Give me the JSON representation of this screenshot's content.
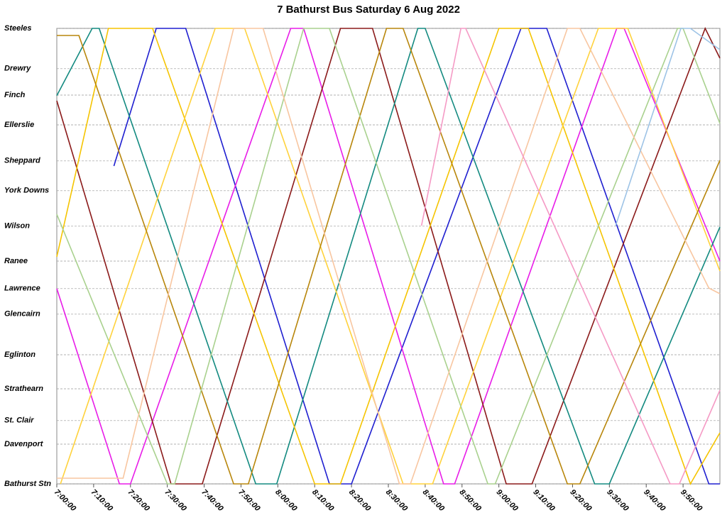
{
  "chart_data": {
    "type": "line",
    "title": "7 Bathurst Bus Saturday 6 Aug 2022",
    "xlim": [
      420,
      600
    ],
    "ylim": [
      0,
      16.05
    ],
    "grid": true,
    "xticks": [
      {
        "value": 420,
        "label": "7:00:00"
      },
      {
        "value": 430,
        "label": "7:10:00"
      },
      {
        "value": 440,
        "label": "7:20:00"
      },
      {
        "value": 450,
        "label": "7:30:00"
      },
      {
        "value": 460,
        "label": "7:40:00"
      },
      {
        "value": 470,
        "label": "7:50:00"
      },
      {
        "value": 480,
        "label": "8:00:00"
      },
      {
        "value": 490,
        "label": "8:10:00"
      },
      {
        "value": 500,
        "label": "8:20:00"
      },
      {
        "value": 510,
        "label": "8:30:00"
      },
      {
        "value": 520,
        "label": "8:40:00"
      },
      {
        "value": 530,
        "label": "8:50:00"
      },
      {
        "value": 540,
        "label": "9:00:00"
      },
      {
        "value": 550,
        "label": "9:10:00"
      },
      {
        "value": 560,
        "label": "9:20:00"
      },
      {
        "value": 570,
        "label": "9:30:00"
      },
      {
        "value": 580,
        "label": "9:40:00"
      },
      {
        "value": 590,
        "label": "9:50:00"
      }
    ],
    "yticks": [
      {
        "value": 16.05,
        "label": "Steeles"
      },
      {
        "value": 14.63,
        "label": "Drewry"
      },
      {
        "value": 13.7,
        "label": "Finch"
      },
      {
        "value": 12.65,
        "label": "Ellerslie"
      },
      {
        "value": 11.38,
        "label": "Sheppard"
      },
      {
        "value": 10.33,
        "label": "York Downs"
      },
      {
        "value": 9.08,
        "label": "Wilson"
      },
      {
        "value": 7.85,
        "label": "Ranee"
      },
      {
        "value": 6.88,
        "label": "Lawrence"
      },
      {
        "value": 5.98,
        "label": "Glencairn"
      },
      {
        "value": 4.55,
        "label": "Eglinton"
      },
      {
        "value": 3.35,
        "label": "Strathearn"
      },
      {
        "value": 2.23,
        "label": "St. Clair"
      },
      {
        "value": 1.4,
        "label": "Davenport"
      },
      {
        "value": 0,
        "label": "Bathurst Stn"
      }
    ],
    "series": [
      {
        "color": "#1f1fd0",
        "x": [
          435.5,
          447,
          455,
          494,
          500,
          546,
          553,
          597,
          600
        ],
        "values": [
          11.2,
          16.05,
          16.05,
          0,
          0,
          16.05,
          16.05,
          0,
          0
        ]
      },
      {
        "color": "#e81ce8",
        "x": [
          420,
          437,
          440,
          483.5,
          487,
          525,
          528,
          572,
          574,
          600
        ],
        "values": [
          6.88,
          0,
          0,
          16.05,
          16.05,
          0,
          0,
          16.05,
          16.05,
          7.85
        ]
      },
      {
        "color": "#8b1a1a",
        "x": [
          420,
          451,
          459.5,
          497,
          505.7,
          542,
          549,
          596,
          600
        ],
        "values": [
          13.5,
          0,
          0,
          16.05,
          16.05,
          0,
          0,
          16.05,
          15
        ]
      },
      {
        "color": "#138a80",
        "x": [
          420,
          429.6,
          431.5,
          474,
          479.7,
          518,
          520,
          566,
          570,
          600
        ],
        "values": [
          13.68,
          16.05,
          16.05,
          0,
          0,
          16.05,
          16.05,
          0,
          0,
          9.05
        ]
      },
      {
        "color": "#f5c400",
        "x": [
          420,
          434,
          446,
          490,
          497,
          540,
          548,
          592,
          600
        ],
        "values": [
          8,
          16.05,
          16.05,
          0,
          0,
          16.05,
          16.05,
          0,
          1.8
        ]
      },
      {
        "color": "#ffd23c",
        "x": [
          421,
          463,
          471,
          514,
          522,
          567,
          575,
          600
        ],
        "values": [
          0,
          16.05,
          16.05,
          0,
          0,
          16.05,
          16.05,
          7.5
        ]
      },
      {
        "color": "#b8860b",
        "x": [
          420,
          426,
          468,
          472,
          509.5,
          514,
          558.6,
          562,
          600
        ],
        "values": [
          15.8,
          15.8,
          0,
          0,
          16.05,
          16.05,
          0,
          0,
          11.4
        ]
      },
      {
        "color": "#a9d18e",
        "x": [
          420,
          450,
          452,
          487,
          494,
          537,
          539,
          588.5,
          590,
          600
        ],
        "values": [
          9.5,
          0,
          0,
          16.05,
          16.05,
          0,
          0,
          16.05,
          16.05,
          12.7
        ]
      },
      {
        "color": "#f8c6a0",
        "x": [
          420,
          438,
          468,
          476,
          513,
          516,
          558.6,
          562,
          597,
          600
        ],
        "values": [
          0.2,
          0.2,
          16.05,
          16.05,
          0,
          0,
          16.05,
          16.05,
          6.9,
          6.7
        ]
      },
      {
        "color": "#f59ac5",
        "x": [
          519,
          529.7,
          531,
          586.5,
          589,
          600
        ],
        "values": [
          9.1,
          16.05,
          16.05,
          0,
          0,
          3.3
        ]
      },
      {
        "color": "#9dc3e6",
        "x": [
          571.7,
          589.4,
          592,
          600
        ],
        "values": [
          9.1,
          16.05,
          16.05,
          15.3
        ]
      }
    ]
  }
}
